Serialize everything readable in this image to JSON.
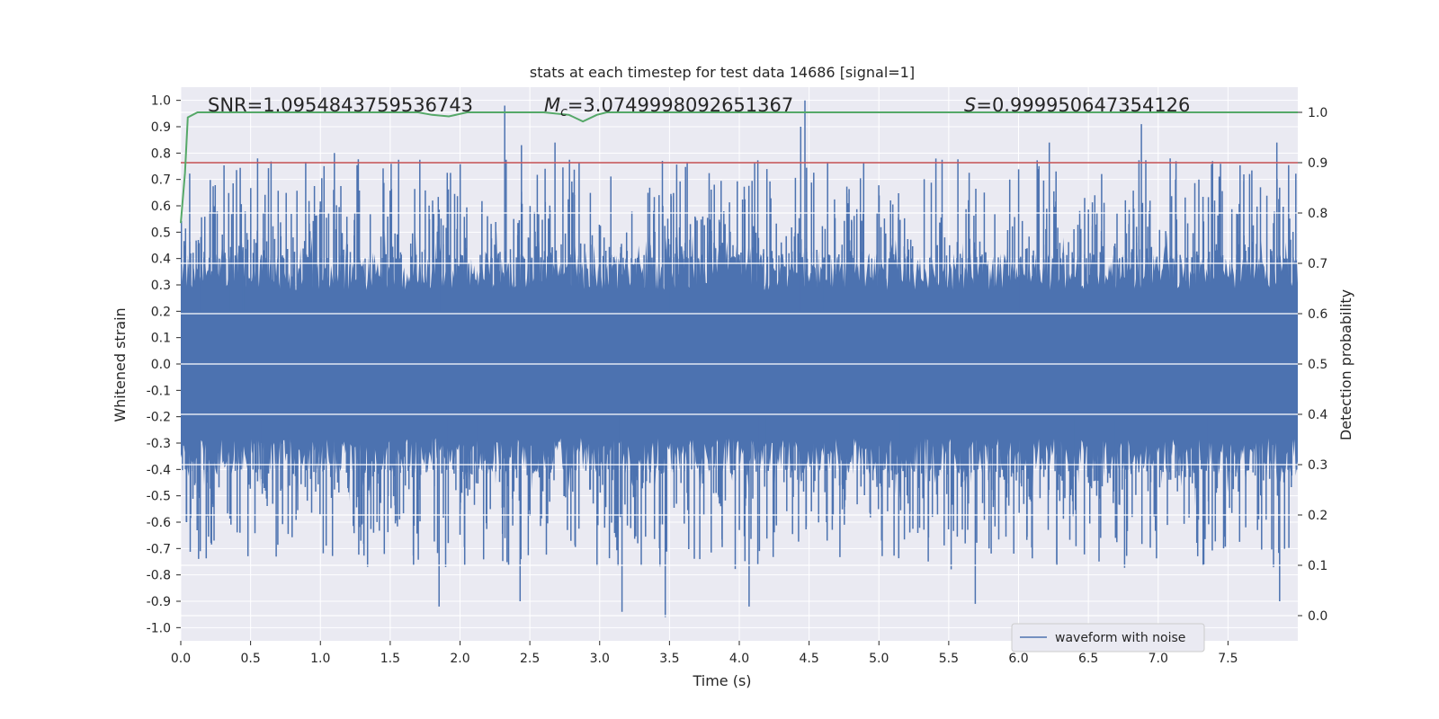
{
  "chart_data": {
    "type": "line",
    "title": "stats at each timestep for test data 14686 [signal=1]",
    "xlabel": "Time (s)",
    "ylabel_left": "Whitened strain",
    "ylabel_right": "Detection probability",
    "xlim": [
      0.0,
      8.0
    ],
    "ylim_left": [
      -1.05,
      1.05
    ],
    "ylim_right": [
      -0.05,
      1.05
    ],
    "x_ticks": [
      "0.0",
      "0.5",
      "1.0",
      "1.5",
      "2.0",
      "2.5",
      "3.0",
      "3.5",
      "4.0",
      "4.5",
      "5.0",
      "5.5",
      "6.0",
      "6.5",
      "7.0",
      "7.5"
    ],
    "y_ticks_left": [
      "1.0",
      "0.9",
      "0.8",
      "0.7",
      "0.6",
      "0.5",
      "0.4",
      "0.3",
      "0.2",
      "0.1",
      "0.0",
      "-0.1",
      "-0.2",
      "-0.3",
      "-0.4",
      "-0.5",
      "-0.6",
      "-0.7",
      "-0.8",
      "-0.9",
      "-1.0"
    ],
    "y_ticks_right": [
      "1.0",
      "0.9",
      "0.8",
      "0.7",
      "0.6",
      "0.5",
      "0.4",
      "0.3",
      "0.2",
      "0.1",
      "0.0"
    ],
    "grid": true,
    "annotations": {
      "snr": "SNR=1.0954843759536743",
      "mc_symbol": "M",
      "mc_sub": "c",
      "mc_value": "=3.0749998092651367",
      "s_symbol": "S",
      "s_value": "=0.999950647354126"
    },
    "threshold": {
      "axis": "right",
      "value": 0.9,
      "color": "#c44e52"
    },
    "series": [
      {
        "name": "waveform with noise",
        "axis": "left",
        "color": "#4c72b0",
        "note_envelope": "dense noise band approx +/-0.4, spikes to about +/-0.95",
        "peaks": [
          {
            "x": 0.55,
            "y": 0.78
          },
          {
            "x": 1.1,
            "y": 0.8
          },
          {
            "x": 2.32,
            "y": 0.98
          },
          {
            "x": 2.44,
            "y": 0.83
          },
          {
            "x": 2.68,
            "y": 0.84
          },
          {
            "x": 4.44,
            "y": 0.9
          },
          {
            "x": 4.47,
            "y": 1.0
          },
          {
            "x": 6.22,
            "y": 0.84
          },
          {
            "x": 6.88,
            "y": 0.91
          },
          {
            "x": 7.85,
            "y": 0.84
          }
        ],
        "troughs": [
          {
            "x": 1.85,
            "y": -0.92
          },
          {
            "x": 2.43,
            "y": -0.9
          },
          {
            "x": 3.16,
            "y": -0.94
          },
          {
            "x": 3.47,
            "y": -0.96
          },
          {
            "x": 4.07,
            "y": -0.92
          },
          {
            "x": 5.69,
            "y": -0.91
          },
          {
            "x": 7.87,
            "y": -0.9
          }
        ]
      },
      {
        "name": "",
        "axis": "right",
        "color": "#55a868",
        "points": [
          [
            0.0,
            0.78
          ],
          [
            0.03,
            0.88
          ],
          [
            0.05,
            0.99
          ],
          [
            0.12,
            1.0
          ],
          [
            1.7,
            1.0
          ],
          [
            1.8,
            0.995
          ],
          [
            1.92,
            0.992
          ],
          [
            2.05,
            1.0
          ],
          [
            2.6,
            1.0
          ],
          [
            2.78,
            0.995
          ],
          [
            2.88,
            0.982
          ],
          [
            2.98,
            0.995
          ],
          [
            3.05,
            1.0
          ],
          [
            8.0,
            1.0
          ]
        ]
      }
    ],
    "legend": {
      "placement": "lower-right",
      "entries": [
        "waveform with noise"
      ]
    }
  }
}
